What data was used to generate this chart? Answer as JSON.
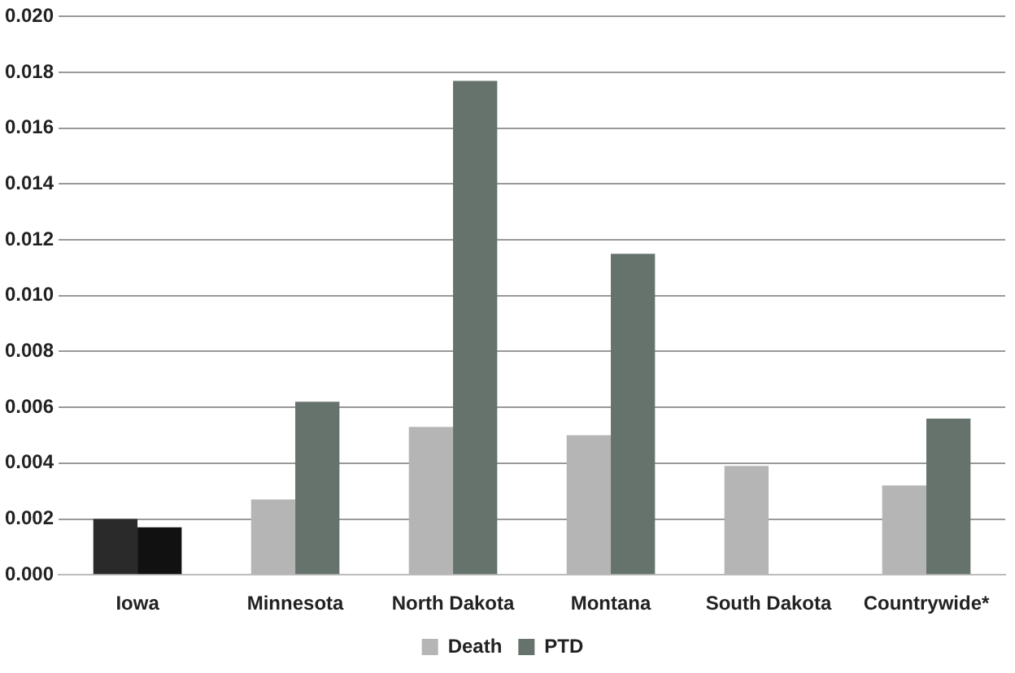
{
  "chart_data": {
    "type": "bar",
    "categories": [
      "Iowa",
      "Minnesota",
      "North Dakota",
      "Montana",
      "South Dakota",
      "Countrywide*"
    ],
    "series": [
      {
        "name": "Death",
        "color": "#b5b5b5",
        "colors": [
          "#2a2a2a",
          "#b5b5b5",
          "#b5b5b5",
          "#b5b5b5",
          "#b5b5b5",
          "#b5b5b5"
        ],
        "values": [
          0.002,
          0.0027,
          0.0053,
          0.005,
          0.0039,
          0.0032
        ]
      },
      {
        "name": "PTD",
        "color": "#66736c",
        "colors": [
          "#111111",
          "#66736c",
          "#66736c",
          "#66736c",
          "#66736c",
          "#66736c"
        ],
        "values": [
          0.0017,
          0.0062,
          0.0177,
          0.0115,
          null,
          0.0056
        ]
      }
    ],
    "ylim": [
      0,
      0.02
    ],
    "yticks": [
      {
        "value": 0,
        "label": "0.000"
      },
      {
        "value": 0.002,
        "label": "0.002"
      },
      {
        "value": 0.004,
        "label": "0.004"
      },
      {
        "value": 0.006,
        "label": "0.006"
      },
      {
        "value": 0.008,
        "label": "0.008"
      },
      {
        "value": 0.01,
        "label": "0.010"
      },
      {
        "value": 0.012,
        "label": "0.012"
      },
      {
        "value": 0.014,
        "label": "0.014"
      },
      {
        "value": 0.016,
        "label": "0.016"
      },
      {
        "value": 0.018,
        "label": "0.018"
      },
      {
        "value": 0.02,
        "label": "0.020"
      }
    ],
    "grid": "y",
    "legend": "bottom"
  }
}
